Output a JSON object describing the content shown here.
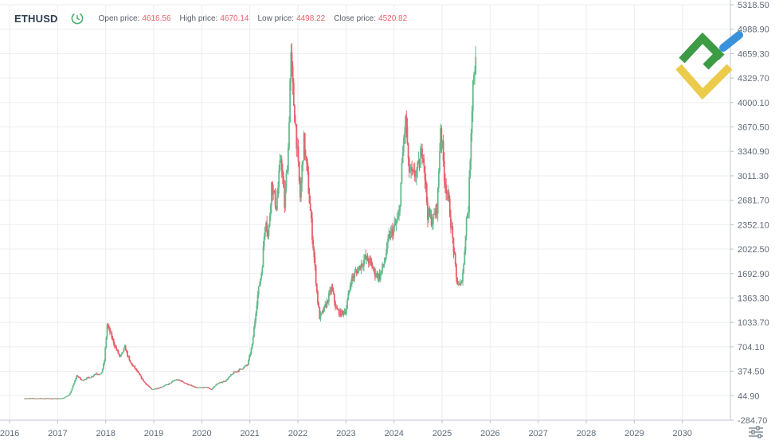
{
  "header": {
    "symbol": "ETHUSD",
    "open_label": "Open price:",
    "open_value": "4616.56",
    "high_label": "High price:",
    "high_value": "4670.14",
    "low_label": "Low price:",
    "low_value": "4498.22",
    "close_label": "Close price:",
    "close_value": "4520.82"
  },
  "icons": {
    "clock": "clock-icon",
    "logo": "litefinance-logo",
    "settings": "settings-sliders-icon"
  },
  "colors": {
    "up": "#66bb8e",
    "down": "#e8606b",
    "value_text": "#e8606b",
    "grid": "#ededf0",
    "axis_text": "#606a78",
    "logo_green": "#3d9a45",
    "logo_yellow": "#eccb4c",
    "logo_blue": "#3a92dc"
  },
  "chart_data": {
    "type": "line",
    "subtype": "candlestick",
    "title": "ETHUSD",
    "xlabel": "",
    "ylabel": "",
    "xlim": [
      2015.8,
      2031.0
    ],
    "ylim": [
      -284.7,
      5318.5
    ],
    "grid": true,
    "y_axis_position": "right",
    "x_ticks": [
      "2016",
      "2017",
      "2018",
      "2019",
      "2020",
      "2021",
      "2022",
      "2023",
      "2024",
      "2025",
      "2026",
      "2027",
      "2028",
      "2029",
      "2030"
    ],
    "y_ticks": [
      "5318.50",
      "4988.90",
      "4659.30",
      "4329.70",
      "4000.10",
      "3670.50",
      "3340.90",
      "3011.30",
      "2681.70",
      "2352.10",
      "2022.50",
      "1692.90",
      "1363.30",
      "1033.70",
      "704.10",
      "374.50",
      "44.90",
      "-284.70"
    ],
    "series": [
      {
        "x": [
          2016.3,
          2016.6,
          2016.9,
          2017.1,
          2017.25,
          2017.4,
          2017.5,
          2017.6,
          2017.7,
          2017.8,
          2017.9,
          2017.97,
          2018.03,
          2018.1,
          2018.2,
          2018.3,
          2018.4,
          2018.5,
          2018.6,
          2018.8,
          2018.95,
          2019.1,
          2019.3,
          2019.45,
          2019.55,
          2019.7,
          2019.9,
          2020.1,
          2020.2,
          2020.3,
          2020.5,
          2020.65,
          2020.8,
          2020.95,
          2021.05,
          2021.15,
          2021.25,
          2021.33,
          2021.38,
          2021.45,
          2021.55,
          2021.65,
          2021.72,
          2021.8,
          2021.85,
          2021.9,
          2021.95,
          2022.0,
          2022.05,
          2022.12,
          2022.2,
          2022.3,
          2022.4,
          2022.45,
          2022.5,
          2022.6,
          2022.7,
          2022.8,
          2022.9,
          2023.0,
          2023.1,
          2023.2,
          2023.3,
          2023.4,
          2023.5,
          2023.6,
          2023.7,
          2023.8,
          2023.9,
          2024.0,
          2024.1,
          2024.2,
          2024.25,
          2024.3,
          2024.4,
          2024.5,
          2024.6,
          2024.7,
          2024.8,
          2024.9,
          2024.97,
          2025.05,
          2025.15,
          2025.25,
          2025.3,
          2025.38,
          2025.45,
          2025.5,
          2025.55,
          2025.6,
          2025.65,
          2025.7
        ],
        "y": [
          10,
          10,
          8,
          10,
          60,
          320,
          250,
          280,
          300,
          350,
          330,
          500,
          1000,
          880,
          700,
          560,
          700,
          500,
          420,
          230,
          130,
          150,
          200,
          260,
          250,
          200,
          150,
          160,
          130,
          200,
          250,
          350,
          400,
          460,
          730,
          1350,
          1750,
          2500,
          2150,
          2900,
          2600,
          3300,
          2600,
          3400,
          4650,
          4100,
          3700,
          3200,
          2700,
          3500,
          3000,
          2200,
          1400,
          1100,
          1150,
          1300,
          1500,
          1200,
          1150,
          1200,
          1600,
          1700,
          1800,
          1900,
          1850,
          1700,
          1650,
          1850,
          2200,
          2300,
          2450,
          3500,
          3800,
          3100,
          3000,
          3100,
          3400,
          2500,
          2400,
          2600,
          3700,
          3000,
          2600,
          1950,
          1600,
          1500,
          1800,
          2400,
          2600,
          3600,
          4400,
          4520.82
        ]
      }
    ]
  }
}
